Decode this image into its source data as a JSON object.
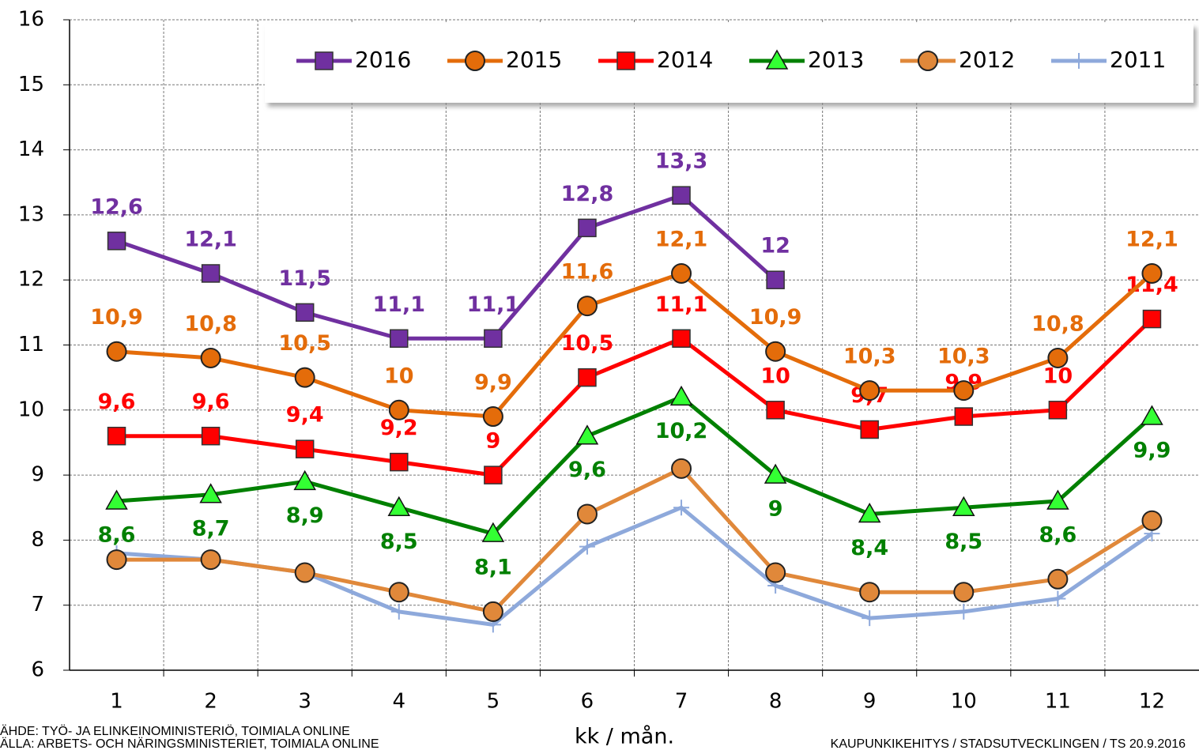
{
  "chart_data": {
    "type": "line",
    "categories": [
      "1",
      "2",
      "3",
      "4",
      "5",
      "6",
      "7",
      "8",
      "9",
      "10",
      "11",
      "12"
    ],
    "x_label": "kk / mån.",
    "source_fi": "ÄHDE: TYÖ- JA ELINKEINOMINISTERIÖ, TOIMIALA ONLINE",
    "source_sv": "ÄLLA: ARBETS- OCH NÄRINGSMINISTERIET, TOIMIALA ONLINE",
    "credit": "KAUPUNKIKEHITYS / STADSUTVECKLINGEN / TS 20.9.2016",
    "ylim": [
      6,
      16
    ],
    "yticks": [
      6,
      7,
      8,
      9,
      10,
      11,
      12,
      13,
      14,
      15,
      16
    ],
    "grid": true,
    "series": [
      {
        "name": "2016",
        "color": "#7030a0",
        "marker": "square",
        "label_pos": "above",
        "values": [
          12.6,
          12.1,
          11.5,
          11.1,
          11.1,
          12.8,
          13.3,
          12,
          null,
          null,
          null,
          null
        ],
        "value_labels": [
          "12,6",
          "12,1",
          "11,5",
          "11,1",
          "11,1",
          "12,8",
          "13,3",
          "12",
          null,
          null,
          null,
          null
        ]
      },
      {
        "name": "2015",
        "color": "#e46c0a",
        "marker": "circle",
        "label_pos": "above",
        "values": [
          10.9,
          10.8,
          10.5,
          10,
          9.9,
          11.6,
          12.1,
          10.9,
          10.3,
          10.3,
          10.8,
          12.1
        ],
        "value_labels": [
          "10,9",
          "10,8",
          "10,5",
          "10",
          "9,9",
          "11,6",
          "12,1",
          "10,9",
          "10,3",
          "10,3",
          "10,8",
          "12,1"
        ]
      },
      {
        "name": "2014",
        "color": "#ff0000",
        "marker": "square",
        "label_pos": "above",
        "values": [
          9.6,
          9.6,
          9.4,
          9.2,
          9,
          10.5,
          11.1,
          10,
          9.7,
          9.9,
          10,
          11.4
        ],
        "value_labels": [
          "9,6",
          "9,6",
          "9,4",
          "9,2",
          "9",
          "10,5",
          "11,1",
          "10",
          "9,7",
          "9,9",
          "10",
          "11,4"
        ]
      },
      {
        "name": "2013",
        "color": "#008000",
        "marker": "triangle",
        "label_pos": "below",
        "values": [
          8.6,
          8.7,
          8.9,
          8.5,
          8.1,
          9.6,
          10.2,
          9,
          8.4,
          8.5,
          8.6,
          9.9
        ],
        "value_labels": [
          "8,6",
          "8,7",
          "8,9",
          "8,5",
          "8,1",
          "9,6",
          "10,2",
          "9",
          "8,4",
          "8,5",
          "8,6",
          "9,9"
        ]
      },
      {
        "name": "2012",
        "color": "#e0883a",
        "marker": "circle",
        "values": [
          7.7,
          7.7,
          7.5,
          7.2,
          6.9,
          8.4,
          9.1,
          7.5,
          7.2,
          7.2,
          7.4,
          8.3
        ]
      },
      {
        "name": "2011",
        "color": "#8ea9db",
        "marker": "plus",
        "values": [
          7.8,
          7.7,
          7.5,
          6.9,
          6.7,
          7.9,
          8.5,
          7.3,
          6.8,
          6.9,
          7.1,
          8.1
        ]
      }
    ]
  }
}
